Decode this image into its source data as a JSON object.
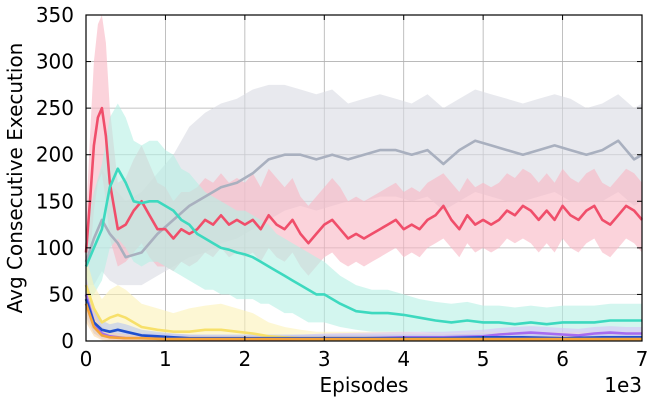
{
  "chart_data": {
    "type": "area",
    "title": "",
    "xlabel": "Episodes",
    "ylabel": "Avg Consecutive Execution",
    "x_scale_label": "1e3",
    "xlim": [
      0,
      7000
    ],
    "ylim": [
      0,
      350
    ],
    "xticks": [
      0,
      1000,
      2000,
      3000,
      4000,
      5000,
      6000,
      7000
    ],
    "xtick_labels": [
      "0",
      "1",
      "2",
      "3",
      "4",
      "5",
      "6",
      "7"
    ],
    "yticks": [
      0,
      50,
      100,
      150,
      200,
      250,
      300,
      350
    ],
    "ytick_labels": [
      "0",
      "50",
      "100",
      "150",
      "200",
      "250",
      "300",
      "350"
    ],
    "grid": true,
    "legend": "none",
    "series": [
      {
        "color": "#a9b0bf",
        "band_color": "#d9dbe3",
        "x": [
          0,
          100,
          200,
          300,
          400,
          500,
          700,
          900,
          1100,
          1300,
          1500,
          1700,
          1900,
          2100,
          2300,
          2500,
          2700,
          2900,
          3100,
          3300,
          3500,
          3700,
          3900,
          4100,
          4300,
          4500,
          4700,
          4900,
          5100,
          5300,
          5500,
          5700,
          5900,
          6100,
          6300,
          6500,
          6700,
          6900,
          7000
        ],
        "values": [
          85,
          110,
          130,
          115,
          105,
          90,
          95,
          115,
          130,
          145,
          155,
          165,
          170,
          180,
          195,
          200,
          200,
          195,
          200,
          195,
          200,
          205,
          205,
          200,
          205,
          190,
          205,
          215,
          210,
          205,
          200,
          205,
          210,
          205,
          200,
          205,
          215,
          195,
          200
        ],
        "lower": [
          60,
          60,
          75,
          65,
          60,
          60,
          60,
          70,
          80,
          90,
          95,
          105,
          110,
          120,
          130,
          140,
          145,
          140,
          145,
          150,
          150,
          155,
          155,
          150,
          155,
          140,
          150,
          160,
          155,
          150,
          150,
          155,
          160,
          150,
          150,
          150,
          160,
          145,
          150
        ],
        "upper": [
          110,
          160,
          185,
          170,
          160,
          150,
          160,
          180,
          200,
          230,
          245,
          255,
          260,
          270,
          275,
          275,
          270,
          265,
          270,
          255,
          260,
          265,
          260,
          255,
          265,
          250,
          260,
          270,
          265,
          260,
          255,
          260,
          265,
          260,
          250,
          255,
          265,
          250,
          255
        ]
      },
      {
        "color": "#f04e6a",
        "band_color": "#f9b6c3",
        "x": [
          0,
          50,
          100,
          150,
          200,
          250,
          300,
          400,
          500,
          600,
          700,
          800,
          900,
          1000,
          1100,
          1200,
          1300,
          1400,
          1500,
          1600,
          1700,
          1800,
          1900,
          2000,
          2100,
          2200,
          2300,
          2400,
          2500,
          2600,
          2700,
          2800,
          2900,
          3000,
          3100,
          3200,
          3300,
          3400,
          3500,
          3600,
          3700,
          3800,
          3900,
          4000,
          4100,
          4200,
          4300,
          4400,
          4500,
          4600,
          4700,
          4800,
          4900,
          5000,
          5100,
          5200,
          5300,
          5400,
          5500,
          5600,
          5700,
          5800,
          5900,
          6000,
          6100,
          6200,
          6300,
          6400,
          6500,
          6600,
          6700,
          6800,
          6900,
          7000
        ],
        "values": [
          95,
          150,
          210,
          240,
          250,
          220,
          170,
          120,
          125,
          140,
          150,
          135,
          120,
          120,
          110,
          120,
          115,
          120,
          130,
          125,
          135,
          125,
          130,
          125,
          130,
          120,
          135,
          125,
          120,
          130,
          115,
          105,
          115,
          125,
          130,
          120,
          110,
          115,
          110,
          115,
          120,
          125,
          130,
          120,
          125,
          120,
          130,
          135,
          145,
          130,
          120,
          135,
          125,
          130,
          125,
          130,
          140,
          135,
          145,
          140,
          130,
          140,
          130,
          145,
          135,
          130,
          140,
          145,
          130,
          125,
          135,
          145,
          140,
          130
        ],
        "lower": [
          60,
          90,
          140,
          170,
          180,
          150,
          110,
          80,
          85,
          95,
          105,
          90,
          80,
          80,
          75,
          85,
          80,
          85,
          95,
          90,
          100,
          90,
          95,
          90,
          95,
          85,
          100,
          90,
          85,
          95,
          80,
          70,
          80,
          90,
          95,
          85,
          80,
          85,
          80,
          85,
          90,
          95,
          100,
          90,
          95,
          90,
          100,
          105,
          110,
          100,
          90,
          105,
          95,
          100,
          95,
          100,
          110,
          105,
          110,
          105,
          95,
          105,
          95,
          110,
          100,
          95,
          105,
          110,
          95,
          90,
          100,
          110,
          105,
          95
        ],
        "upper": [
          130,
          220,
          300,
          340,
          350,
          320,
          250,
          170,
          175,
          195,
          210,
          190,
          170,
          165,
          150,
          160,
          160,
          165,
          175,
          170,
          180,
          170,
          175,
          170,
          180,
          165,
          185,
          175,
          165,
          175,
          155,
          145,
          155,
          165,
          175,
          165,
          150,
          155,
          150,
          155,
          160,
          165,
          170,
          160,
          165,
          160,
          170,
          175,
          180,
          170,
          160,
          175,
          165,
          170,
          165,
          170,
          180,
          175,
          185,
          180,
          170,
          180,
          170,
          185,
          175,
          170,
          180,
          185,
          170,
          165,
          175,
          185,
          180,
          170
        ]
      },
      {
        "color": "#3dd9bf",
        "band_color": "#b5f0e4",
        "x": [
          0,
          100,
          200,
          300,
          400,
          500,
          600,
          700,
          800,
          900,
          1000,
          1100,
          1200,
          1300,
          1400,
          1500,
          1600,
          1700,
          1800,
          1900,
          2000,
          2100,
          2200,
          2300,
          2400,
          2500,
          2600,
          2700,
          2800,
          2900,
          3000,
          3200,
          3400,
          3600,
          3800,
          4000,
          4200,
          4400,
          4600,
          4800,
          5000,
          5200,
          5400,
          5600,
          5800,
          6000,
          6200,
          6400,
          6600,
          6800,
          7000
        ],
        "values": [
          80,
          100,
          120,
          165,
          185,
          170,
          150,
          148,
          150,
          150,
          145,
          140,
          130,
          125,
          115,
          110,
          105,
          100,
          98,
          95,
          93,
          90,
          85,
          80,
          75,
          70,
          65,
          60,
          55,
          50,
          50,
          40,
          32,
          30,
          30,
          28,
          25,
          22,
          20,
          22,
          20,
          20,
          18,
          20,
          18,
          20,
          20,
          20,
          22,
          22,
          22
        ],
        "lower": [
          40,
          50,
          65,
          100,
          110,
          100,
          85,
          80,
          85,
          85,
          80,
          75,
          70,
          65,
          60,
          55,
          55,
          50,
          50,
          45,
          45,
          45,
          40,
          40,
          35,
          30,
          30,
          25,
          20,
          20,
          20,
          15,
          12,
          10,
          10,
          10,
          10,
          8,
          8,
          8,
          8,
          8,
          6,
          8,
          6,
          8,
          8,
          8,
          8,
          8,
          8
        ],
        "upper": [
          120,
          160,
          190,
          240,
          255,
          240,
          215,
          210,
          215,
          215,
          205,
          200,
          185,
          180,
          170,
          160,
          155,
          150,
          145,
          140,
          140,
          135,
          130,
          125,
          115,
          110,
          105,
          100,
          95,
          90,
          85,
          70,
          60,
          55,
          55,
          50,
          45,
          42,
          40,
          42,
          38,
          38,
          36,
          38,
          36,
          38,
          38,
          38,
          40,
          40,
          40
        ]
      },
      {
        "color": "#f7e06a",
        "band_color": "#fcf1b8",
        "x": [
          0,
          100,
          200,
          300,
          400,
          500,
          700,
          900,
          1100,
          1300,
          1500,
          1700,
          1900,
          2100,
          2300,
          2500,
          2700,
          2900,
          3100,
          3500,
          4000,
          4500,
          5000,
          5500,
          6000,
          6500,
          7000
        ],
        "values": [
          60,
          35,
          20,
          25,
          28,
          25,
          15,
          12,
          10,
          10,
          12,
          12,
          10,
          8,
          5,
          4,
          3,
          3,
          3,
          3,
          3,
          2,
          3,
          3,
          3,
          3,
          3
        ],
        "lower": [
          30,
          15,
          5,
          8,
          10,
          8,
          3,
          2,
          2,
          2,
          3,
          3,
          2,
          1,
          0,
          0,
          0,
          0,
          0,
          0,
          0,
          0,
          0,
          0,
          0,
          0,
          0
        ],
        "upper": [
          90,
          60,
          45,
          55,
          60,
          55,
          40,
          35,
          30,
          35,
          38,
          40,
          35,
          30,
          20,
          15,
          12,
          10,
          10,
          10,
          10,
          8,
          10,
          10,
          10,
          10,
          10
        ]
      },
      {
        "color": "#a66bf0",
        "band_color": "#d8c2f7",
        "x": [
          0,
          100,
          200,
          300,
          500,
          700,
          1000,
          1500,
          2000,
          2500,
          3000,
          3500,
          4000,
          4500,
          5000,
          5200,
          5400,
          5600,
          5800,
          6000,
          6200,
          6400,
          6600,
          6800,
          7000
        ],
        "values": [
          50,
          20,
          8,
          5,
          3,
          3,
          3,
          2,
          2,
          2,
          3,
          3,
          4,
          4,
          5,
          7,
          8,
          9,
          8,
          7,
          6,
          8,
          9,
          8,
          8
        ],
        "lower": [
          30,
          8,
          2,
          1,
          0,
          0,
          0,
          0,
          0,
          0,
          0,
          0,
          1,
          1,
          1,
          2,
          3,
          3,
          3,
          2,
          2,
          3,
          3,
          3,
          3
        ],
        "upper": [
          70,
          35,
          15,
          10,
          8,
          8,
          8,
          6,
          6,
          6,
          8,
          9,
          10,
          10,
          12,
          14,
          15,
          16,
          15,
          14,
          13,
          15,
          16,
          15,
          15
        ]
      },
      {
        "color": "#1f4fcf",
        "band_color": "#b7c6f0",
        "x": [
          0,
          100,
          200,
          300,
          400,
          500,
          700,
          900,
          1100,
          1300,
          1500,
          2000,
          2500,
          3000,
          3500,
          4000,
          4500,
          5000,
          5500,
          6000,
          6500,
          7000
        ],
        "values": [
          45,
          20,
          12,
          10,
          12,
          10,
          6,
          5,
          4,
          3,
          3,
          3,
          3,
          3,
          3,
          3,
          3,
          4,
          4,
          3,
          4,
          4
        ],
        "lower": [
          25,
          8,
          4,
          3,
          4,
          3,
          1,
          1,
          0,
          0,
          0,
          0,
          0,
          0,
          0,
          0,
          0,
          0,
          0,
          0,
          0,
          0
        ],
        "upper": [
          65,
          35,
          22,
          18,
          20,
          18,
          12,
          10,
          8,
          7,
          7,
          7,
          7,
          7,
          7,
          7,
          7,
          8,
          8,
          7,
          8,
          8
        ]
      },
      {
        "color": "#f5a33a",
        "band_color": "#fbd9a8",
        "x": [
          0,
          100,
          200,
          300,
          500,
          700,
          1000,
          1500,
          2000,
          2500,
          3000,
          3500,
          4000,
          4500,
          5000,
          5500,
          6000,
          6500,
          7000
        ],
        "values": [
          40,
          15,
          6,
          4,
          3,
          3,
          2,
          2,
          2,
          2,
          2,
          2,
          2,
          2,
          2,
          2,
          2,
          2,
          2
        ],
        "lower": [
          20,
          5,
          1,
          0,
          0,
          0,
          0,
          0,
          0,
          0,
          0,
          0,
          0,
          0,
          0,
          0,
          0,
          0,
          0
        ],
        "upper": [
          60,
          30,
          14,
          10,
          7,
          6,
          5,
          5,
          5,
          5,
          5,
          5,
          5,
          5,
          5,
          5,
          5,
          5,
          5
        ]
      }
    ]
  }
}
